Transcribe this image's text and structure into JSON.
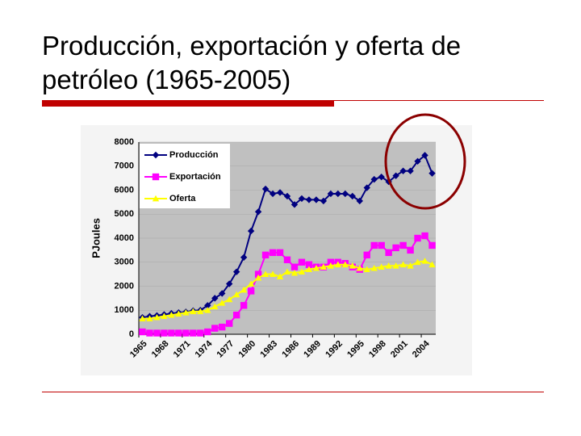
{
  "slide": {
    "title": "Producción, exportación y oferta de petróleo (1965-2005)"
  },
  "chart_data": {
    "type": "line",
    "ylabel": "PJoules",
    "categories": [
      "1965",
      null,
      null,
      "1968",
      null,
      null,
      "1971",
      null,
      null,
      "1974",
      null,
      null,
      "1977",
      null,
      null,
      "1980",
      null,
      null,
      "1983",
      null,
      null,
      "1986",
      null,
      null,
      "1989",
      null,
      null,
      "1992",
      null,
      null,
      "1995",
      null,
      null,
      "1998",
      null,
      null,
      "2001",
      null,
      null,
      "2004",
      null
    ],
    "series": [
      {
        "name": "Producción",
        "color": "#000080",
        "marker": "diamond",
        "values": [
          700,
          750,
          780,
          820,
          870,
          900,
          930,
          980,
          1000,
          1200,
          1500,
          1700,
          2100,
          2600,
          3200,
          4300,
          5100,
          6050,
          5850,
          5900,
          5750,
          5400,
          5650,
          5600,
          5600,
          5550,
          5850,
          5850,
          5850,
          5750,
          5550,
          6100,
          6450,
          6550,
          6350,
          6600,
          6800,
          6800,
          7200,
          7450,
          6700
        ]
      },
      {
        "name": "Exportación",
        "color": "#ff00ff",
        "marker": "square",
        "values": [
          100,
          50,
          50,
          50,
          50,
          50,
          50,
          50,
          50,
          100,
          250,
          300,
          450,
          800,
          1200,
          1800,
          2500,
          3300,
          3400,
          3400,
          3100,
          2800,
          3000,
          2900,
          2800,
          2800,
          3000,
          3000,
          2950,
          2800,
          2700,
          3300,
          3700,
          3700,
          3400,
          3600,
          3700,
          3500,
          4000,
          4100,
          3700
        ]
      },
      {
        "name": "Oferta",
        "color": "#ffff00",
        "marker": "triangle",
        "values": [
          650,
          650,
          700,
          750,
          800,
          850,
          900,
          950,
          950,
          1000,
          1150,
          1300,
          1450,
          1650,
          1850,
          2100,
          2350,
          2500,
          2500,
          2400,
          2600,
          2550,
          2600,
          2700,
          2750,
          2800,
          2850,
          2900,
          2900,
          2850,
          2750,
          2700,
          2750,
          2800,
          2850,
          2850,
          2900,
          2850,
          3000,
          3050,
          2900
        ]
      }
    ],
    "ylim": [
      0,
      8000
    ],
    "yticks": [
      0,
      1000,
      2000,
      3000,
      4000,
      5000,
      6000,
      7000,
      8000
    ],
    "grid": true,
    "legend": "top-left"
  }
}
